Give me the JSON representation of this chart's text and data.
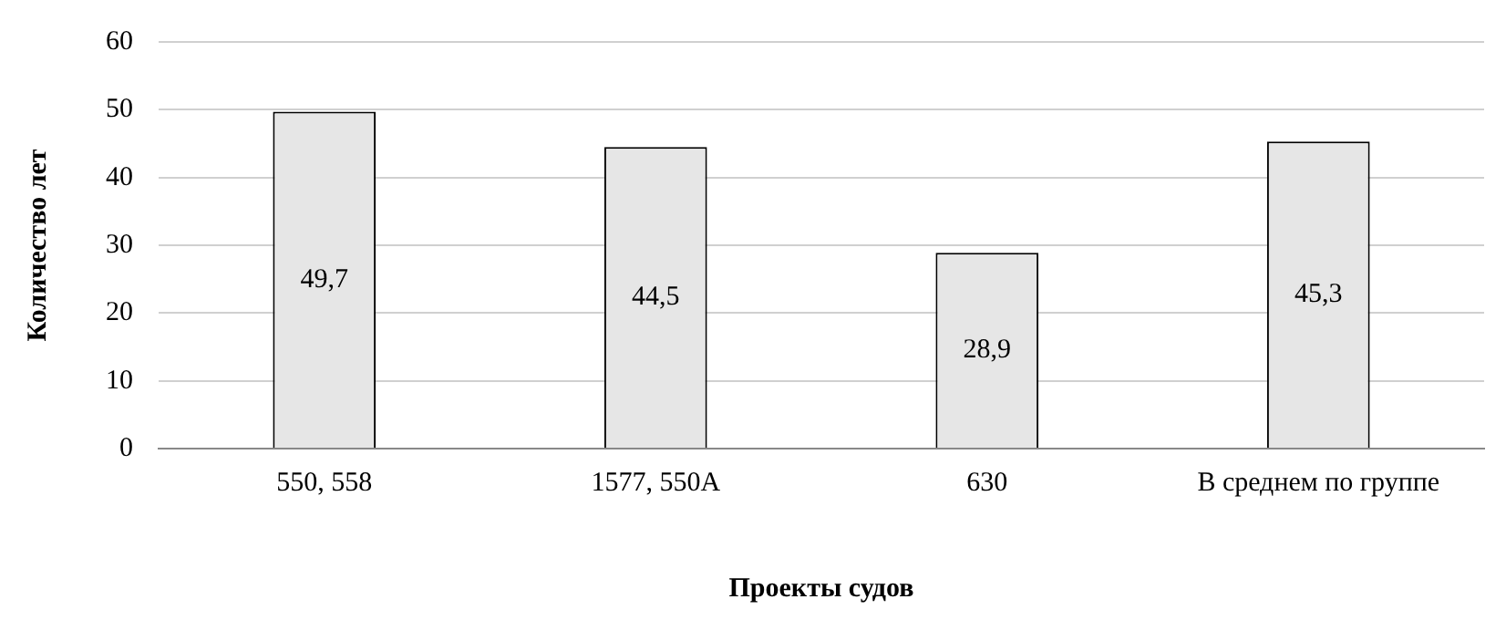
{
  "chart_data": {
    "type": "bar",
    "xlabel": "Проекты судов",
    "ylabel": "Количество лет",
    "categories": [
      "550, 558",
      "1577, 550А",
      "630",
      "В среднем по группе"
    ],
    "values": [
      49.7,
      44.5,
      28.9,
      45.3
    ],
    "value_labels": [
      "49,7",
      "44,5",
      "28,9",
      "45,3"
    ],
    "color": "#e6e6e6",
    "ylim": [
      0,
      60
    ],
    "yticks": [
      0,
      10,
      20,
      30,
      40,
      50,
      60
    ],
    "grid": "y",
    "legend": false
  }
}
